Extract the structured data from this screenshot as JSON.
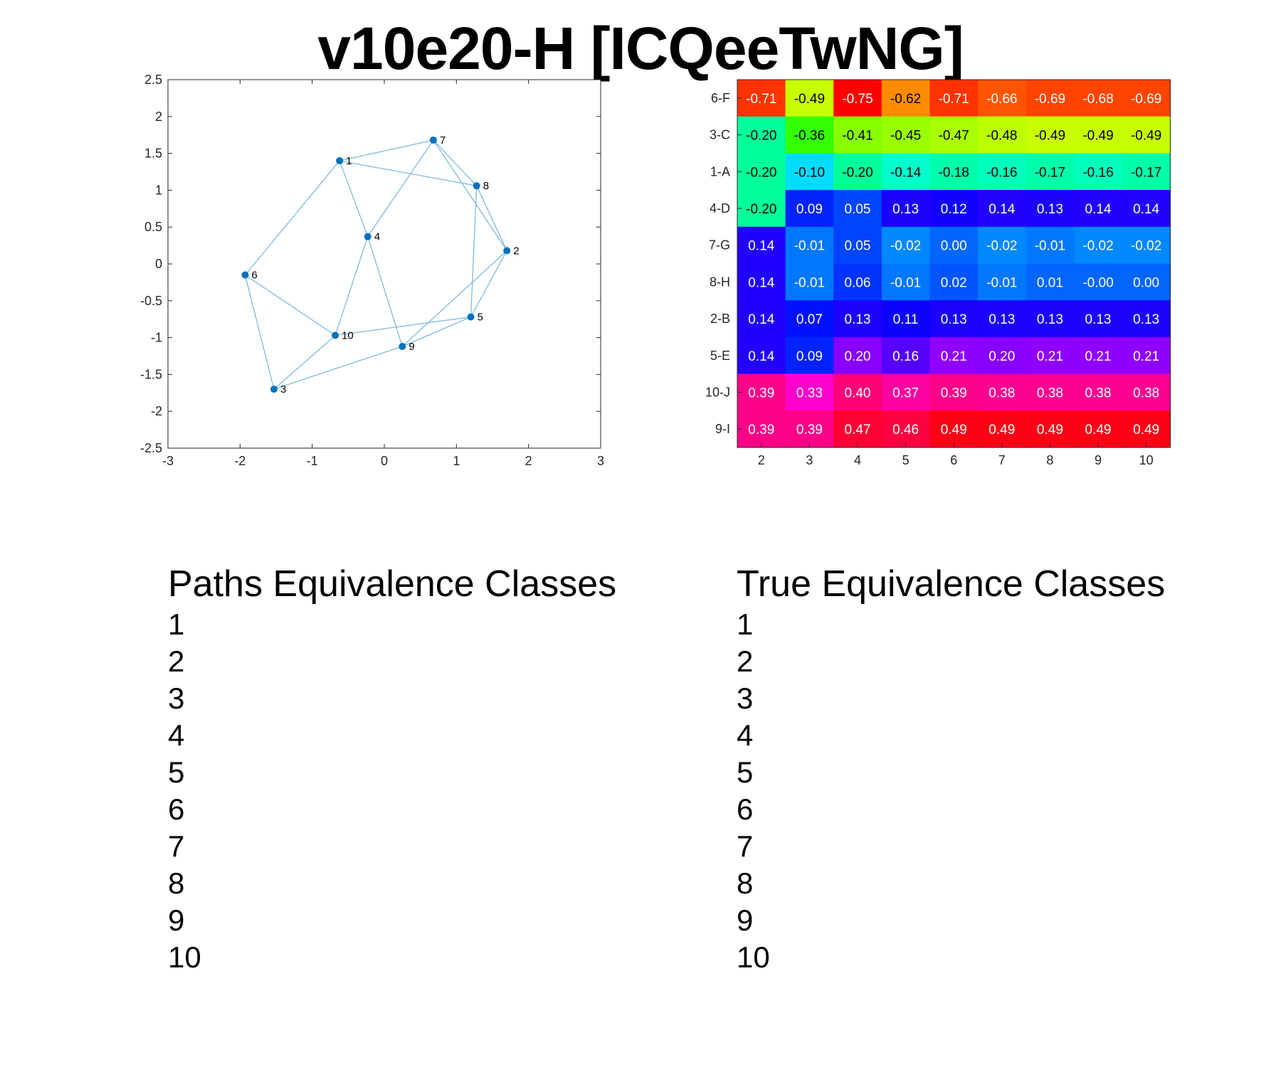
{
  "title": "v10e20-H [ICQeeTwNG]",
  "chart_data": [
    {
      "type": "scatter",
      "subtype": "network-graph",
      "xlim": [
        -3,
        3
      ],
      "ylim": [
        -2.5,
        2.5
      ],
      "x_ticks": [
        "-3",
        "-2",
        "-1",
        "0",
        "1",
        "2",
        "3"
      ],
      "y_ticks": [
        "2.5",
        "2",
        "1.5",
        "1",
        "0.5",
        "0",
        "-0.5",
        "-1",
        "-1.5",
        "-2",
        "-2.5"
      ],
      "grid": false,
      "node_color": "#0072BD",
      "edge_color": "#7FB9DE",
      "nodes": [
        {
          "label": "1",
          "x": -0.62,
          "y": 1.4
        },
        {
          "label": "2",
          "x": 1.7,
          "y": 0.18
        },
        {
          "label": "3",
          "x": -1.53,
          "y": -1.7
        },
        {
          "label": "4",
          "x": -0.23,
          "y": 0.37
        },
        {
          "label": "5",
          "x": 1.2,
          "y": -0.72
        },
        {
          "label": "6",
          "x": -1.93,
          "y": -0.15
        },
        {
          "label": "7",
          "x": 0.68,
          "y": 1.68
        },
        {
          "label": "8",
          "x": 1.28,
          "y": 1.06
        },
        {
          "label": "9",
          "x": 0.25,
          "y": -1.12
        },
        {
          "label": "10",
          "x": -0.68,
          "y": -0.97
        }
      ],
      "edges": [
        [
          1,
          7
        ],
        [
          1,
          8
        ],
        [
          1,
          6
        ],
        [
          1,
          4
        ],
        [
          7,
          8
        ],
        [
          7,
          4
        ],
        [
          7,
          2
        ],
        [
          8,
          2
        ],
        [
          8,
          5
        ],
        [
          4,
          10
        ],
        [
          4,
          9
        ],
        [
          2,
          5
        ],
        [
          2,
          9
        ],
        [
          6,
          10
        ],
        [
          6,
          3
        ],
        [
          10,
          5
        ],
        [
          10,
          3
        ],
        [
          3,
          9
        ],
        [
          9,
          5
        ]
      ]
    },
    {
      "type": "heatmap",
      "columns": [
        "2",
        "3",
        "4",
        "5",
        "6",
        "7",
        "8",
        "9",
        "10"
      ],
      "rows": [
        "6-F",
        "3-C",
        "1-A",
        "4-D",
        "7-G",
        "8-H",
        "2-B",
        "5-E",
        "10-J",
        "9-I"
      ],
      "colormap": "hsv",
      "values": [
        [
          "-0.71",
          "-0.49",
          "-0.75",
          "-0.62",
          "-0.71",
          "-0.66",
          "-0.69",
          "-0.68",
          "-0.69"
        ],
        [
          "-0.20",
          "-0.36",
          "-0.41",
          "-0.45",
          "-0.47",
          "-0.48",
          "-0.49",
          "-0.49",
          "-0.49"
        ],
        [
          "-0.20",
          "-0.10",
          "-0.20",
          "-0.14",
          "-0.18",
          "-0.16",
          "-0.17",
          "-0.16",
          "-0.17"
        ],
        [
          "-0.20",
          "0.09",
          "0.05",
          "0.13",
          "0.12",
          "0.14",
          "0.13",
          "0.14",
          "0.14"
        ],
        [
          "0.14",
          "-0.01",
          "0.05",
          "-0.02",
          "0.00",
          "-0.02",
          "-0.01",
          "-0.02",
          "-0.02"
        ],
        [
          "0.14",
          "-0.01",
          "0.06",
          "-0.01",
          "0.02",
          "-0.01",
          "0.01",
          "-0.00",
          "0.00"
        ],
        [
          "0.14",
          "0.07",
          "0.13",
          "0.11",
          "0.13",
          "0.13",
          "0.13",
          "0.13",
          "0.13"
        ],
        [
          "0.14",
          "0.09",
          "0.20",
          "0.16",
          "0.21",
          "0.20",
          "0.21",
          "0.21",
          "0.21"
        ],
        [
          "0.39",
          "0.33",
          "0.40",
          "0.37",
          "0.39",
          "0.38",
          "0.38",
          "0.38",
          "0.38"
        ],
        [
          "0.39",
          "0.39",
          "0.47",
          "0.46",
          "0.49",
          "0.49",
          "0.49",
          "0.49",
          "0.49"
        ]
      ],
      "cell_colors": [
        [
          "#FF3300",
          "#C8FF00",
          "#FF0000",
          "#FF8C00",
          "#FF3300",
          "#FF5500",
          "#FF4400",
          "#FF4400",
          "#FF4400"
        ],
        [
          "#00FF99",
          "#33FF00",
          "#88FF00",
          "#99FF00",
          "#AAFF00",
          "#BBFF00",
          "#C8FF00",
          "#C8FF00",
          "#C8FF00"
        ],
        [
          "#00FF99",
          "#00DDFF",
          "#00FF99",
          "#00FFCC",
          "#00FFAA",
          "#00FFBB",
          "#00FFAA",
          "#00FFBB",
          "#00FFAA"
        ],
        [
          "#00FF99",
          "#0022FF",
          "#0044FF",
          "#1A00FF",
          "#1100FF",
          "#2200FF",
          "#1A00FF",
          "#2200FF",
          "#2200FF"
        ],
        [
          "#2200FF",
          "#0077FF",
          "#0044FF",
          "#0088FF",
          "#0066FF",
          "#0088FF",
          "#0077FF",
          "#0088FF",
          "#0088FF"
        ],
        [
          "#2200FF",
          "#0077FF",
          "#0033FF",
          "#0077FF",
          "#0055FF",
          "#0077FF",
          "#0066FF",
          "#0066FF",
          "#0066FF"
        ],
        [
          "#2200FF",
          "#0011FF",
          "#1A00FF",
          "#0C00FF",
          "#1A00FF",
          "#1A00FF",
          "#1A00FF",
          "#1A00FF",
          "#1A00FF"
        ],
        [
          "#2200FF",
          "#0022FF",
          "#8800FF",
          "#5500FF",
          "#9000FF",
          "#8800FF",
          "#9000FF",
          "#9000FF",
          "#9000FF"
        ],
        [
          "#FF0088",
          "#FF00CC",
          "#FF0077",
          "#FF00A0",
          "#FF0088",
          "#FF0090",
          "#FF0090",
          "#FF0090",
          "#FF0090"
        ],
        [
          "#FF0088",
          "#FF0088",
          "#FF0033",
          "#FF0040",
          "#FF0015",
          "#FF0015",
          "#FF0015",
          "#FF0015",
          "#FF0015"
        ]
      ]
    }
  ],
  "paths_classes": {
    "title": "Paths Equivalence Classes",
    "items": [
      "1",
      "2",
      "3",
      "4",
      "5",
      "6",
      "7",
      "8",
      "9",
      "10"
    ]
  },
  "true_classes": {
    "title": "True Equivalence Classes",
    "items": [
      "1",
      "2",
      "3",
      "4",
      "5",
      "6",
      "7",
      "8",
      "9",
      "10"
    ]
  }
}
